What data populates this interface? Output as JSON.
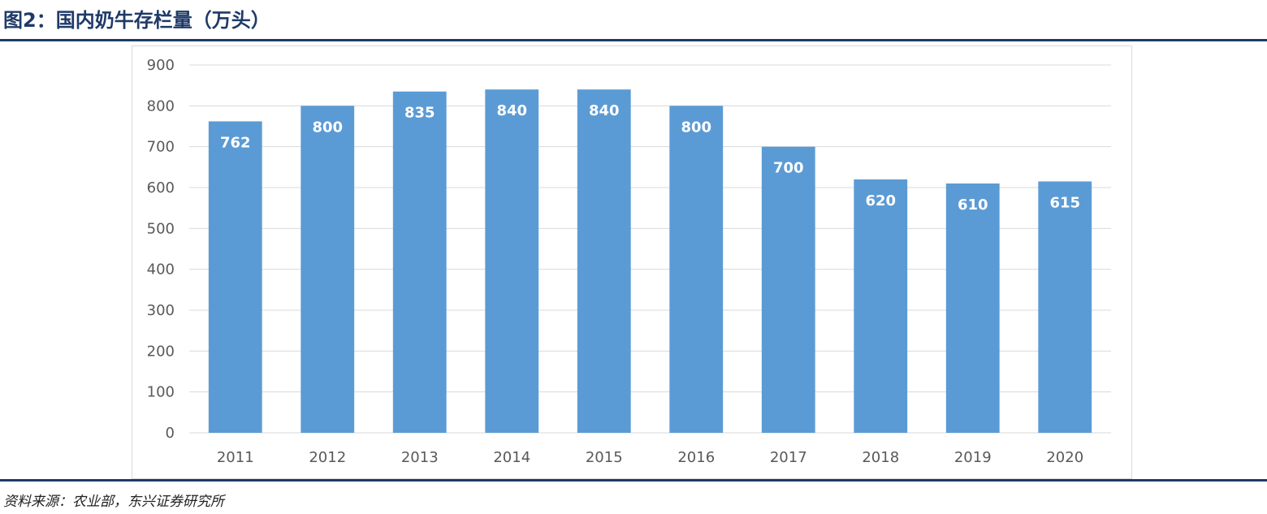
{
  "figure": {
    "title": "图2：国内奶牛存栏量（万头）",
    "source": "资料来源：农业部，东兴证券研究所"
  },
  "colors": {
    "bar": "#5b9bd5",
    "gridline": "#d9d9d9",
    "axis_text": "#595959",
    "title": "#1f3a68",
    "rule": "#1f3a68"
  },
  "chart_data": {
    "type": "bar",
    "title": "",
    "xlabel": "",
    "ylabel": "",
    "categories": [
      "2011",
      "2012",
      "2013",
      "2014",
      "2015",
      "2016",
      "2017",
      "2018",
      "2019",
      "2020"
    ],
    "values": [
      762,
      800,
      835,
      840,
      840,
      800,
      700,
      620,
      610,
      615
    ],
    "data_labels": [
      "762",
      "800",
      "835",
      "840",
      "840",
      "800",
      "700",
      "620",
      "610",
      "615"
    ],
    "ylim": [
      0,
      900
    ],
    "yticks": [
      0,
      100,
      200,
      300,
      400,
      500,
      600,
      700,
      800,
      900
    ],
    "ytick_labels": [
      "0",
      "100",
      "200",
      "300",
      "400",
      "500",
      "600",
      "700",
      "800",
      "900"
    ],
    "grid": true,
    "legend": "none"
  }
}
